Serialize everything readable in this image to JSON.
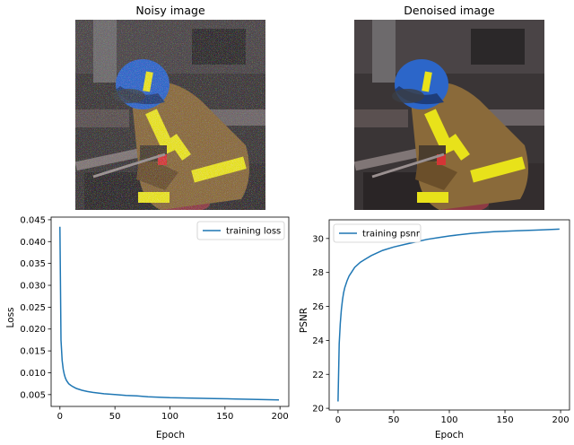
{
  "images": [
    {
      "title": "Noisy image",
      "subject": "firefighter photo with heavy color noise"
    },
    {
      "title": "Denoised image",
      "subject": "firefighter photo after denoising"
    }
  ],
  "colors": {
    "series": "#1f77b4",
    "helmet": "#2c66c9",
    "jacket": "#8a6a3a",
    "reflective": "#e8e21a",
    "background_dark": "#2f2d2e"
  },
  "chart_data": [
    {
      "type": "line",
      "xlabel": "Epoch",
      "ylabel": "Loss",
      "xlim": [
        -8,
        208
      ],
      "ylim": [
        0.0023,
        0.0456
      ],
      "xticks": [
        0,
        50,
        100,
        150,
        200
      ],
      "yticks": [
        0.005,
        0.01,
        0.015,
        0.02,
        0.025,
        0.03,
        0.035,
        0.04,
        0.045
      ],
      "ytick_labels": [
        "0.005",
        "0.010",
        "0.015",
        "0.020",
        "0.025",
        "0.030",
        "0.035",
        "0.040",
        "0.045"
      ],
      "grid": false,
      "legend_position": "top-right",
      "series": [
        {
          "name": "training loss",
          "x": [
            0,
            1,
            2,
            3,
            4,
            5,
            6,
            8,
            10,
            12,
            15,
            20,
            25,
            30,
            40,
            50,
            60,
            70,
            80,
            90,
            100,
            120,
            140,
            160,
            180,
            199
          ],
          "values": [
            0.0434,
            0.0175,
            0.0128,
            0.0108,
            0.0096,
            0.0088,
            0.0082,
            0.0075,
            0.0071,
            0.0068,
            0.0064,
            0.006,
            0.0057,
            0.0055,
            0.0052,
            0.005,
            0.0048,
            0.0047,
            0.0045,
            0.0044,
            0.0043,
            0.0042,
            0.0041,
            0.004,
            0.0039,
            0.0038
          ]
        }
      ]
    },
    {
      "type": "line",
      "xlabel": "Epoch",
      "ylabel": "PSNR",
      "xlim": [
        -8,
        208
      ],
      "ylim": [
        19.9,
        31.1
      ],
      "xticks": [
        0,
        50,
        100,
        150,
        200
      ],
      "yticks": [
        20,
        22,
        24,
        26,
        28,
        30
      ],
      "ytick_labels": [
        "20",
        "22",
        "24",
        "26",
        "28",
        "30"
      ],
      "grid": false,
      "legend_position": "top-left",
      "series": [
        {
          "name": "training psnr",
          "x": [
            0,
            1,
            2,
            3,
            4,
            5,
            6,
            8,
            10,
            12,
            15,
            20,
            25,
            30,
            40,
            50,
            60,
            70,
            80,
            90,
            100,
            120,
            140,
            160,
            180,
            199
          ],
          "values": [
            20.4,
            23.8,
            25.0,
            25.8,
            26.4,
            26.8,
            27.1,
            27.5,
            27.8,
            28.0,
            28.3,
            28.6,
            28.8,
            29.0,
            29.3,
            29.5,
            29.65,
            29.8,
            29.95,
            30.05,
            30.15,
            30.3,
            30.4,
            30.45,
            30.5,
            30.55
          ]
        }
      ]
    }
  ]
}
